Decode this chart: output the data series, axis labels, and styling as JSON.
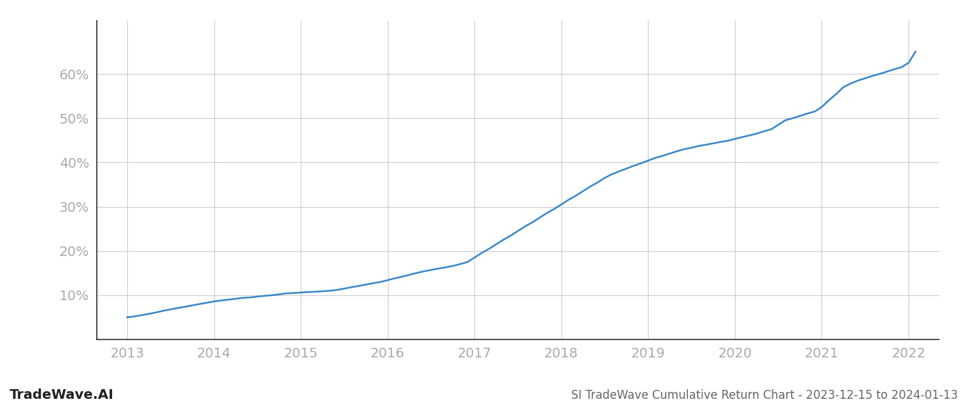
{
  "line_color": "#3a87c8",
  "line_width": 1.8,
  "background_color": "#ffffff",
  "grid_color": "#cccccc",
  "x_years": [
    2013.0,
    2013.08,
    2013.17,
    2013.25,
    2013.33,
    2013.42,
    2013.5,
    2013.58,
    2013.67,
    2013.75,
    2013.83,
    2013.92,
    2014.0,
    2014.08,
    2014.17,
    2014.25,
    2014.33,
    2014.42,
    2014.5,
    2014.58,
    2014.67,
    2014.75,
    2014.83,
    2014.92,
    2015.0,
    2015.08,
    2015.17,
    2015.25,
    2015.33,
    2015.42,
    2015.5,
    2015.58,
    2015.67,
    2015.75,
    2015.83,
    2015.92,
    2016.0,
    2016.08,
    2016.17,
    2016.25,
    2016.33,
    2016.42,
    2016.5,
    2016.58,
    2016.67,
    2016.75,
    2016.83,
    2016.92,
    2017.0,
    2017.08,
    2017.17,
    2017.25,
    2017.33,
    2017.42,
    2017.5,
    2017.58,
    2017.67,
    2017.75,
    2017.83,
    2017.92,
    2018.0,
    2018.08,
    2018.17,
    2018.25,
    2018.33,
    2018.42,
    2018.5,
    2018.58,
    2018.67,
    2018.75,
    2018.83,
    2018.92,
    2019.0,
    2019.08,
    2019.17,
    2019.25,
    2019.33,
    2019.42,
    2019.5,
    2019.58,
    2019.67,
    2019.75,
    2019.83,
    2019.92,
    2020.0,
    2020.08,
    2020.17,
    2020.25,
    2020.33,
    2020.42,
    2020.5,
    2020.58,
    2020.67,
    2020.75,
    2020.83,
    2020.92,
    2021.0,
    2021.08,
    2021.17,
    2021.25,
    2021.33,
    2021.42,
    2021.5,
    2021.58,
    2021.67,
    2021.75,
    2021.83,
    2021.92,
    2022.0,
    2022.08
  ],
  "y_values": [
    5.0,
    5.2,
    5.5,
    5.8,
    6.1,
    6.5,
    6.8,
    7.1,
    7.4,
    7.7,
    8.0,
    8.3,
    8.6,
    8.8,
    9.0,
    9.2,
    9.4,
    9.5,
    9.7,
    9.85,
    10.0,
    10.2,
    10.4,
    10.5,
    10.6,
    10.7,
    10.8,
    10.9,
    11.0,
    11.2,
    11.5,
    11.8,
    12.1,
    12.4,
    12.7,
    13.0,
    13.4,
    13.8,
    14.2,
    14.6,
    15.0,
    15.4,
    15.7,
    16.0,
    16.3,
    16.6,
    17.0,
    17.5,
    18.5,
    19.5,
    20.5,
    21.5,
    22.5,
    23.5,
    24.5,
    25.5,
    26.5,
    27.5,
    28.5,
    29.5,
    30.5,
    31.5,
    32.5,
    33.5,
    34.5,
    35.5,
    36.5,
    37.3,
    38.0,
    38.6,
    39.2,
    39.8,
    40.4,
    41.0,
    41.5,
    42.0,
    42.5,
    43.0,
    43.3,
    43.7,
    44.0,
    44.3,
    44.6,
    44.9,
    45.3,
    45.7,
    46.1,
    46.5,
    47.0,
    47.5,
    48.5,
    49.5,
    50.0,
    50.5,
    51.0,
    51.5,
    52.5,
    54.0,
    55.5,
    57.0,
    57.8,
    58.5,
    59.0,
    59.5,
    60.0,
    60.5,
    61.0,
    61.5,
    62.5,
    65.0
  ],
  "xlim": [
    2012.65,
    2022.35
  ],
  "ylim": [
    0,
    72
  ],
  "xtick_labels": [
    "2013",
    "2014",
    "2015",
    "2016",
    "2017",
    "2018",
    "2019",
    "2020",
    "2021",
    "2022"
  ],
  "xtick_positions": [
    2013,
    2014,
    2015,
    2016,
    2017,
    2018,
    2019,
    2020,
    2021,
    2022
  ],
  "ytick_positions": [
    10,
    20,
    30,
    40,
    50,
    60
  ],
  "ytick_labels": [
    "10%",
    "20%",
    "30%",
    "40%",
    "50%",
    "60%"
  ],
  "watermark_text": "TradeWave.AI",
  "footer_text": "SI TradeWave Cumulative Return Chart - 2023-12-15 to 2024-01-13",
  "tick_label_color": "#aaaaaa",
  "footer_color": "#666666",
  "watermark_color": "#222222",
  "tick_fontsize": 14,
  "footer_fontsize": 12,
  "watermark_fontsize": 14
}
